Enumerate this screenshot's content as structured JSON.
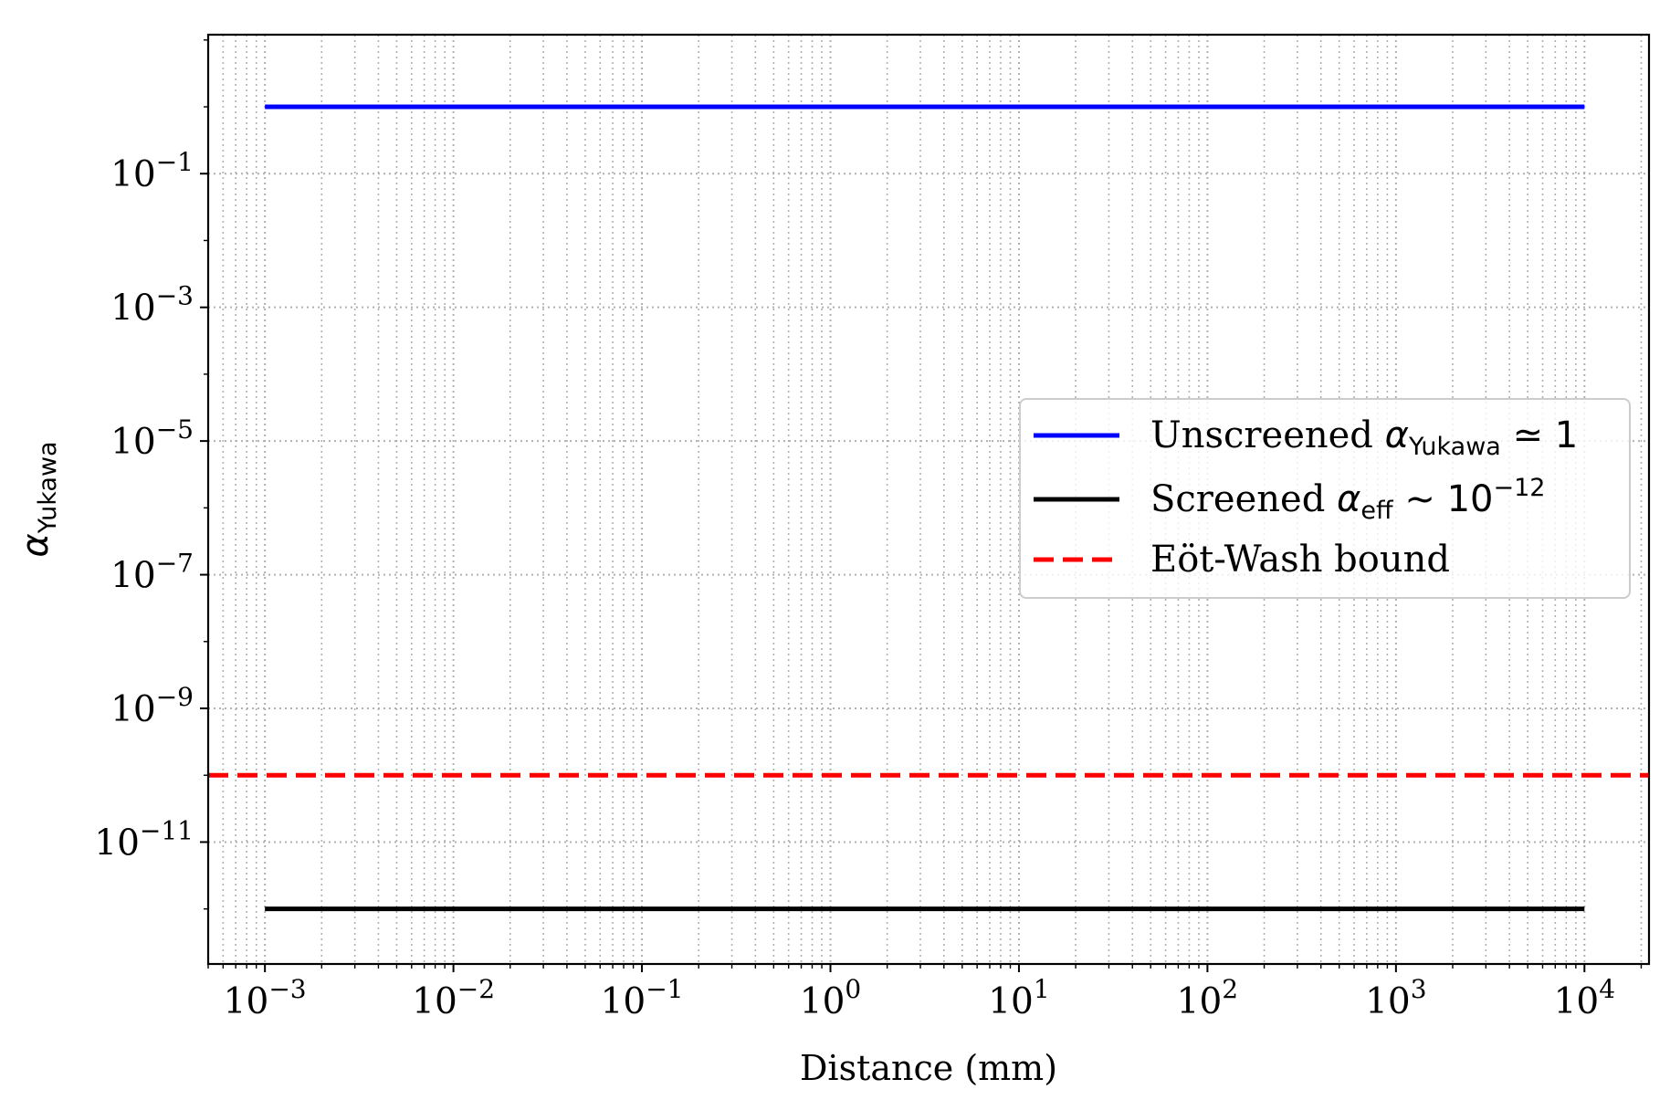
{
  "chart_data": {
    "type": "line",
    "title": "",
    "xlabel": "Distance (mm)",
    "ylabel_symbol": "α",
    "ylabel_sub": "Yukawa",
    "xscale": "log",
    "yscale": "log",
    "xlim": [
      0.0005,
      22000
    ],
    "ylim": [
      1.5e-13,
      12
    ],
    "grid": true,
    "grid_minor": true,
    "legend_placement": "center-right",
    "x_ticks": [
      {
        "base": "10",
        "exp": "−3",
        "value": 0.001
      },
      {
        "base": "10",
        "exp": "−2",
        "value": 0.01
      },
      {
        "base": "10",
        "exp": "−1",
        "value": 0.1
      },
      {
        "base": "10",
        "exp": "0",
        "value": 1
      },
      {
        "base": "10",
        "exp": "1",
        "value": 10
      },
      {
        "base": "10",
        "exp": "2",
        "value": 100
      },
      {
        "base": "10",
        "exp": "3",
        "value": 1000
      },
      {
        "base": "10",
        "exp": "4",
        "value": 10000
      }
    ],
    "y_ticks": [
      {
        "base": "10",
        "exp": "−1",
        "value": 0.1
      },
      {
        "base": "10",
        "exp": "−3",
        "value": 0.001
      },
      {
        "base": "10",
        "exp": "−5",
        "value": 1e-05
      },
      {
        "base": "10",
        "exp": "−7",
        "value": 1e-07
      },
      {
        "base": "10",
        "exp": "−9",
        "value": 1e-09
      },
      {
        "base": "10",
        "exp": "−11",
        "value": 1e-11
      }
    ],
    "series": [
      {
        "name": "Unscreened αYukawa ≃ 1",
        "legend_parts": {
          "pre": "Unscreened ",
          "sym": "α",
          "sub": "Yukawa",
          "post": " ≃ 1",
          "sup": ""
        },
        "color": "#0000ff",
        "style": "solid",
        "x": [
          0.001,
          10000
        ],
        "y": [
          1,
          1
        ]
      },
      {
        "name": "Screened αeff ~ 10−12",
        "legend_parts": {
          "pre": "Screened ",
          "sym": "α",
          "sub": "eff",
          "post": " ~ 10",
          "sup": "−12"
        },
        "color": "#000000",
        "style": "solid",
        "x": [
          0.001,
          10000
        ],
        "y": [
          1e-12,
          1e-12
        ]
      },
      {
        "name": "Eöt-Wash bound",
        "legend_parts": {
          "pre": "Eöt-Wash bound",
          "sym": "",
          "sub": "",
          "post": "",
          "sup": ""
        },
        "color": "#ff0000",
        "style": "dashed",
        "type": "hline",
        "y": [
          1e-10,
          1e-10
        ]
      }
    ]
  }
}
